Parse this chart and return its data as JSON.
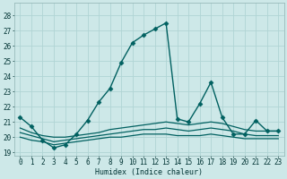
{
  "title": "",
  "xlabel": "Humidex (Indice chaleur)",
  "bg_color": "#cde8e8",
  "grid_color": "#b0d4d4",
  "line_color": "#006060",
  "xlim": [
    -0.5,
    23.5
  ],
  "ylim": [
    18.8,
    28.8
  ],
  "yticks": [
    19,
    20,
    21,
    22,
    23,
    24,
    25,
    26,
    27,
    28
  ],
  "xticks": [
    0,
    1,
    2,
    3,
    4,
    5,
    6,
    7,
    8,
    9,
    10,
    11,
    12,
    13,
    14,
    15,
    16,
    17,
    18,
    19,
    20,
    21,
    22,
    23
  ],
  "series": [
    {
      "x": [
        0,
        1,
        2,
        3,
        4,
        5,
        6,
        7,
        8,
        9,
        10,
        11,
        12,
        13,
        14,
        15,
        16,
        17,
        18,
        19,
        20,
        21,
        22,
        23
      ],
      "y": [
        21.3,
        20.7,
        19.8,
        19.3,
        19.5,
        20.2,
        21.1,
        22.3,
        23.2,
        24.9,
        26.2,
        26.7,
        27.1,
        27.5,
        21.2,
        21.0,
        22.2,
        23.6,
        21.3,
        20.2,
        20.2,
        21.1,
        20.4,
        20.4
      ],
      "marker": "D",
      "markersize": 2.5,
      "linewidth": 1.0
    },
    {
      "x": [
        0,
        1,
        2,
        3,
        4,
        5,
        6,
        7,
        8,
        9,
        10,
        11,
        12,
        13,
        14,
        15,
        16,
        17,
        18,
        19,
        20,
        21,
        22,
        23
      ],
      "y": [
        20.6,
        20.3,
        20.1,
        20.0,
        20.0,
        20.1,
        20.2,
        20.3,
        20.5,
        20.6,
        20.7,
        20.8,
        20.9,
        21.0,
        20.9,
        20.8,
        20.9,
        21.0,
        20.9,
        20.7,
        20.5,
        20.4,
        20.4,
        20.4
      ],
      "marker": null,
      "markersize": 0,
      "linewidth": 0.9
    },
    {
      "x": [
        0,
        1,
        2,
        3,
        4,
        5,
        6,
        7,
        8,
        9,
        10,
        11,
        12,
        13,
        14,
        15,
        16,
        17,
        18,
        19,
        20,
        21,
        22,
        23
      ],
      "y": [
        20.3,
        20.1,
        19.9,
        19.7,
        19.8,
        19.9,
        20.0,
        20.1,
        20.2,
        20.3,
        20.4,
        20.5,
        20.5,
        20.6,
        20.5,
        20.4,
        20.5,
        20.6,
        20.5,
        20.4,
        20.2,
        20.1,
        20.1,
        20.1
      ],
      "marker": null,
      "markersize": 0,
      "linewidth": 0.9
    },
    {
      "x": [
        0,
        1,
        2,
        3,
        4,
        5,
        6,
        7,
        8,
        9,
        10,
        11,
        12,
        13,
        14,
        15,
        16,
        17,
        18,
        19,
        20,
        21,
        22,
        23
      ],
      "y": [
        20.0,
        19.8,
        19.7,
        19.5,
        19.6,
        19.7,
        19.8,
        19.9,
        20.0,
        20.0,
        20.1,
        20.2,
        20.2,
        20.2,
        20.1,
        20.1,
        20.1,
        20.2,
        20.1,
        20.0,
        19.9,
        19.9,
        19.9,
        19.9
      ],
      "marker": null,
      "markersize": 0,
      "linewidth": 0.9
    }
  ]
}
